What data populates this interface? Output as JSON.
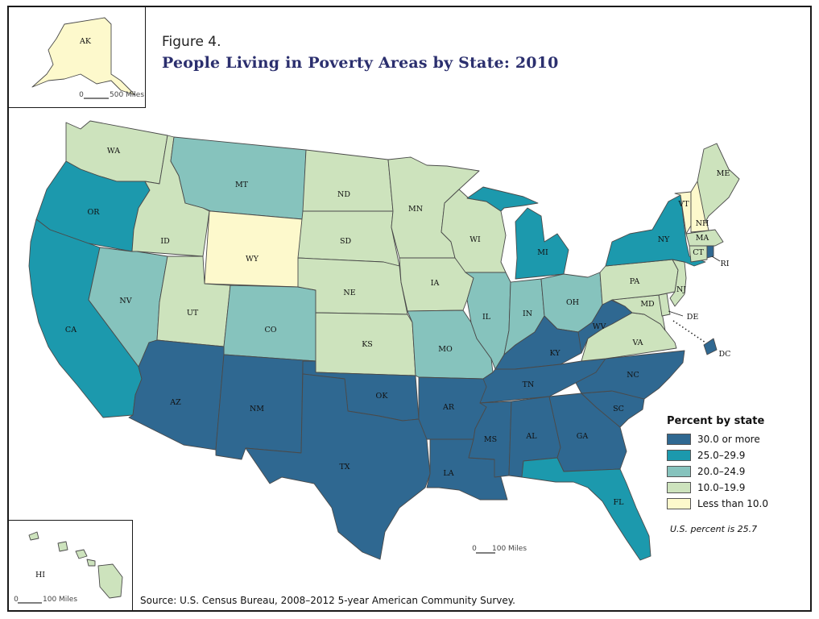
{
  "figure": {
    "number": "Figure 4.",
    "title": "People Living in Poverty Areas by State: 2010"
  },
  "legend": {
    "title": "Percent by state",
    "categories": [
      {
        "label": "30.0 or more",
        "color": "#2f6891"
      },
      {
        "label": "25.0–29.9",
        "color": "#1c99ad"
      },
      {
        "label": "20.0–24.9",
        "color": "#86c3bd"
      },
      {
        "label": "10.0–19.9",
        "color": "#cde3bd"
      },
      {
        "label": "Less than 10.0",
        "color": "#fdf9cc"
      }
    ]
  },
  "us_note": "U.S. percent is 25.7",
  "source": "Source: U.S. Census Bureau, 2008–2012 5-year American Community Survey.",
  "scales": {
    "alaska": "500 Miles",
    "hawaii": "100 Miles",
    "main": "100 Miles",
    "zero": "0"
  },
  "states": {
    "AK": {
      "label": "AK",
      "class": 4
    },
    "HI": {
      "label": "HI",
      "class": 3
    },
    "WA": {
      "label": "WA",
      "class": 3
    },
    "OR": {
      "label": "OR",
      "class": 1
    },
    "CA": {
      "label": "CA",
      "class": 1
    },
    "ID": {
      "label": "ID",
      "class": 3
    },
    "NV": {
      "label": "NV",
      "class": 2
    },
    "MT": {
      "label": "MT",
      "class": 2
    },
    "WY": {
      "label": "WY",
      "class": 4
    },
    "UT": {
      "label": "UT",
      "class": 3
    },
    "AZ": {
      "label": "AZ",
      "class": 0
    },
    "CO": {
      "label": "CO",
      "class": 2
    },
    "NM": {
      "label": "NM",
      "class": 0
    },
    "ND": {
      "label": "ND",
      "class": 3
    },
    "SD": {
      "label": "SD",
      "class": 3
    },
    "NE": {
      "label": "NE",
      "class": 3
    },
    "KS": {
      "label": "KS",
      "class": 3
    },
    "OK": {
      "label": "OK",
      "class": 0
    },
    "TX": {
      "label": "TX",
      "class": 0
    },
    "MN": {
      "label": "MN",
      "class": 3
    },
    "IA": {
      "label": "IA",
      "class": 3
    },
    "MO": {
      "label": "MO",
      "class": 2
    },
    "AR": {
      "label": "AR",
      "class": 0
    },
    "LA": {
      "label": "LA",
      "class": 0
    },
    "WI": {
      "label": "WI",
      "class": 3
    },
    "IL": {
      "label": "IL",
      "class": 2
    },
    "MI": {
      "label": "MI",
      "class": 1
    },
    "IN": {
      "label": "IN",
      "class": 2
    },
    "OH": {
      "label": "OH",
      "class": 2
    },
    "KY": {
      "label": "KY",
      "class": 0
    },
    "TN": {
      "label": "TN",
      "class": 0
    },
    "MS": {
      "label": "MS",
      "class": 0
    },
    "AL": {
      "label": "AL",
      "class": 0
    },
    "GA": {
      "label": "GA",
      "class": 0
    },
    "FL": {
      "label": "FL",
      "class": 1
    },
    "SC": {
      "label": "SC",
      "class": 0
    },
    "NC": {
      "label": "NC",
      "class": 0
    },
    "VA": {
      "label": "VA",
      "class": 3
    },
    "WV": {
      "label": "WV",
      "class": 0
    },
    "PA": {
      "label": "PA",
      "class": 3
    },
    "NY": {
      "label": "NY",
      "class": 1
    },
    "VT": {
      "label": "VT",
      "class": 4
    },
    "NH": {
      "label": "NH",
      "class": 4
    },
    "ME": {
      "label": "ME",
      "class": 3
    },
    "MA": {
      "label": "MA",
      "class": 3
    },
    "RI": {
      "label": "RI",
      "class": 0
    },
    "CT": {
      "label": "CT",
      "class": 3
    },
    "NJ": {
      "label": "NJ",
      "class": 3
    },
    "DE": {
      "label": "DE",
      "class": 3
    },
    "MD": {
      "label": "MD",
      "class": 3
    },
    "DC": {
      "label": "DC",
      "class": 0
    }
  }
}
